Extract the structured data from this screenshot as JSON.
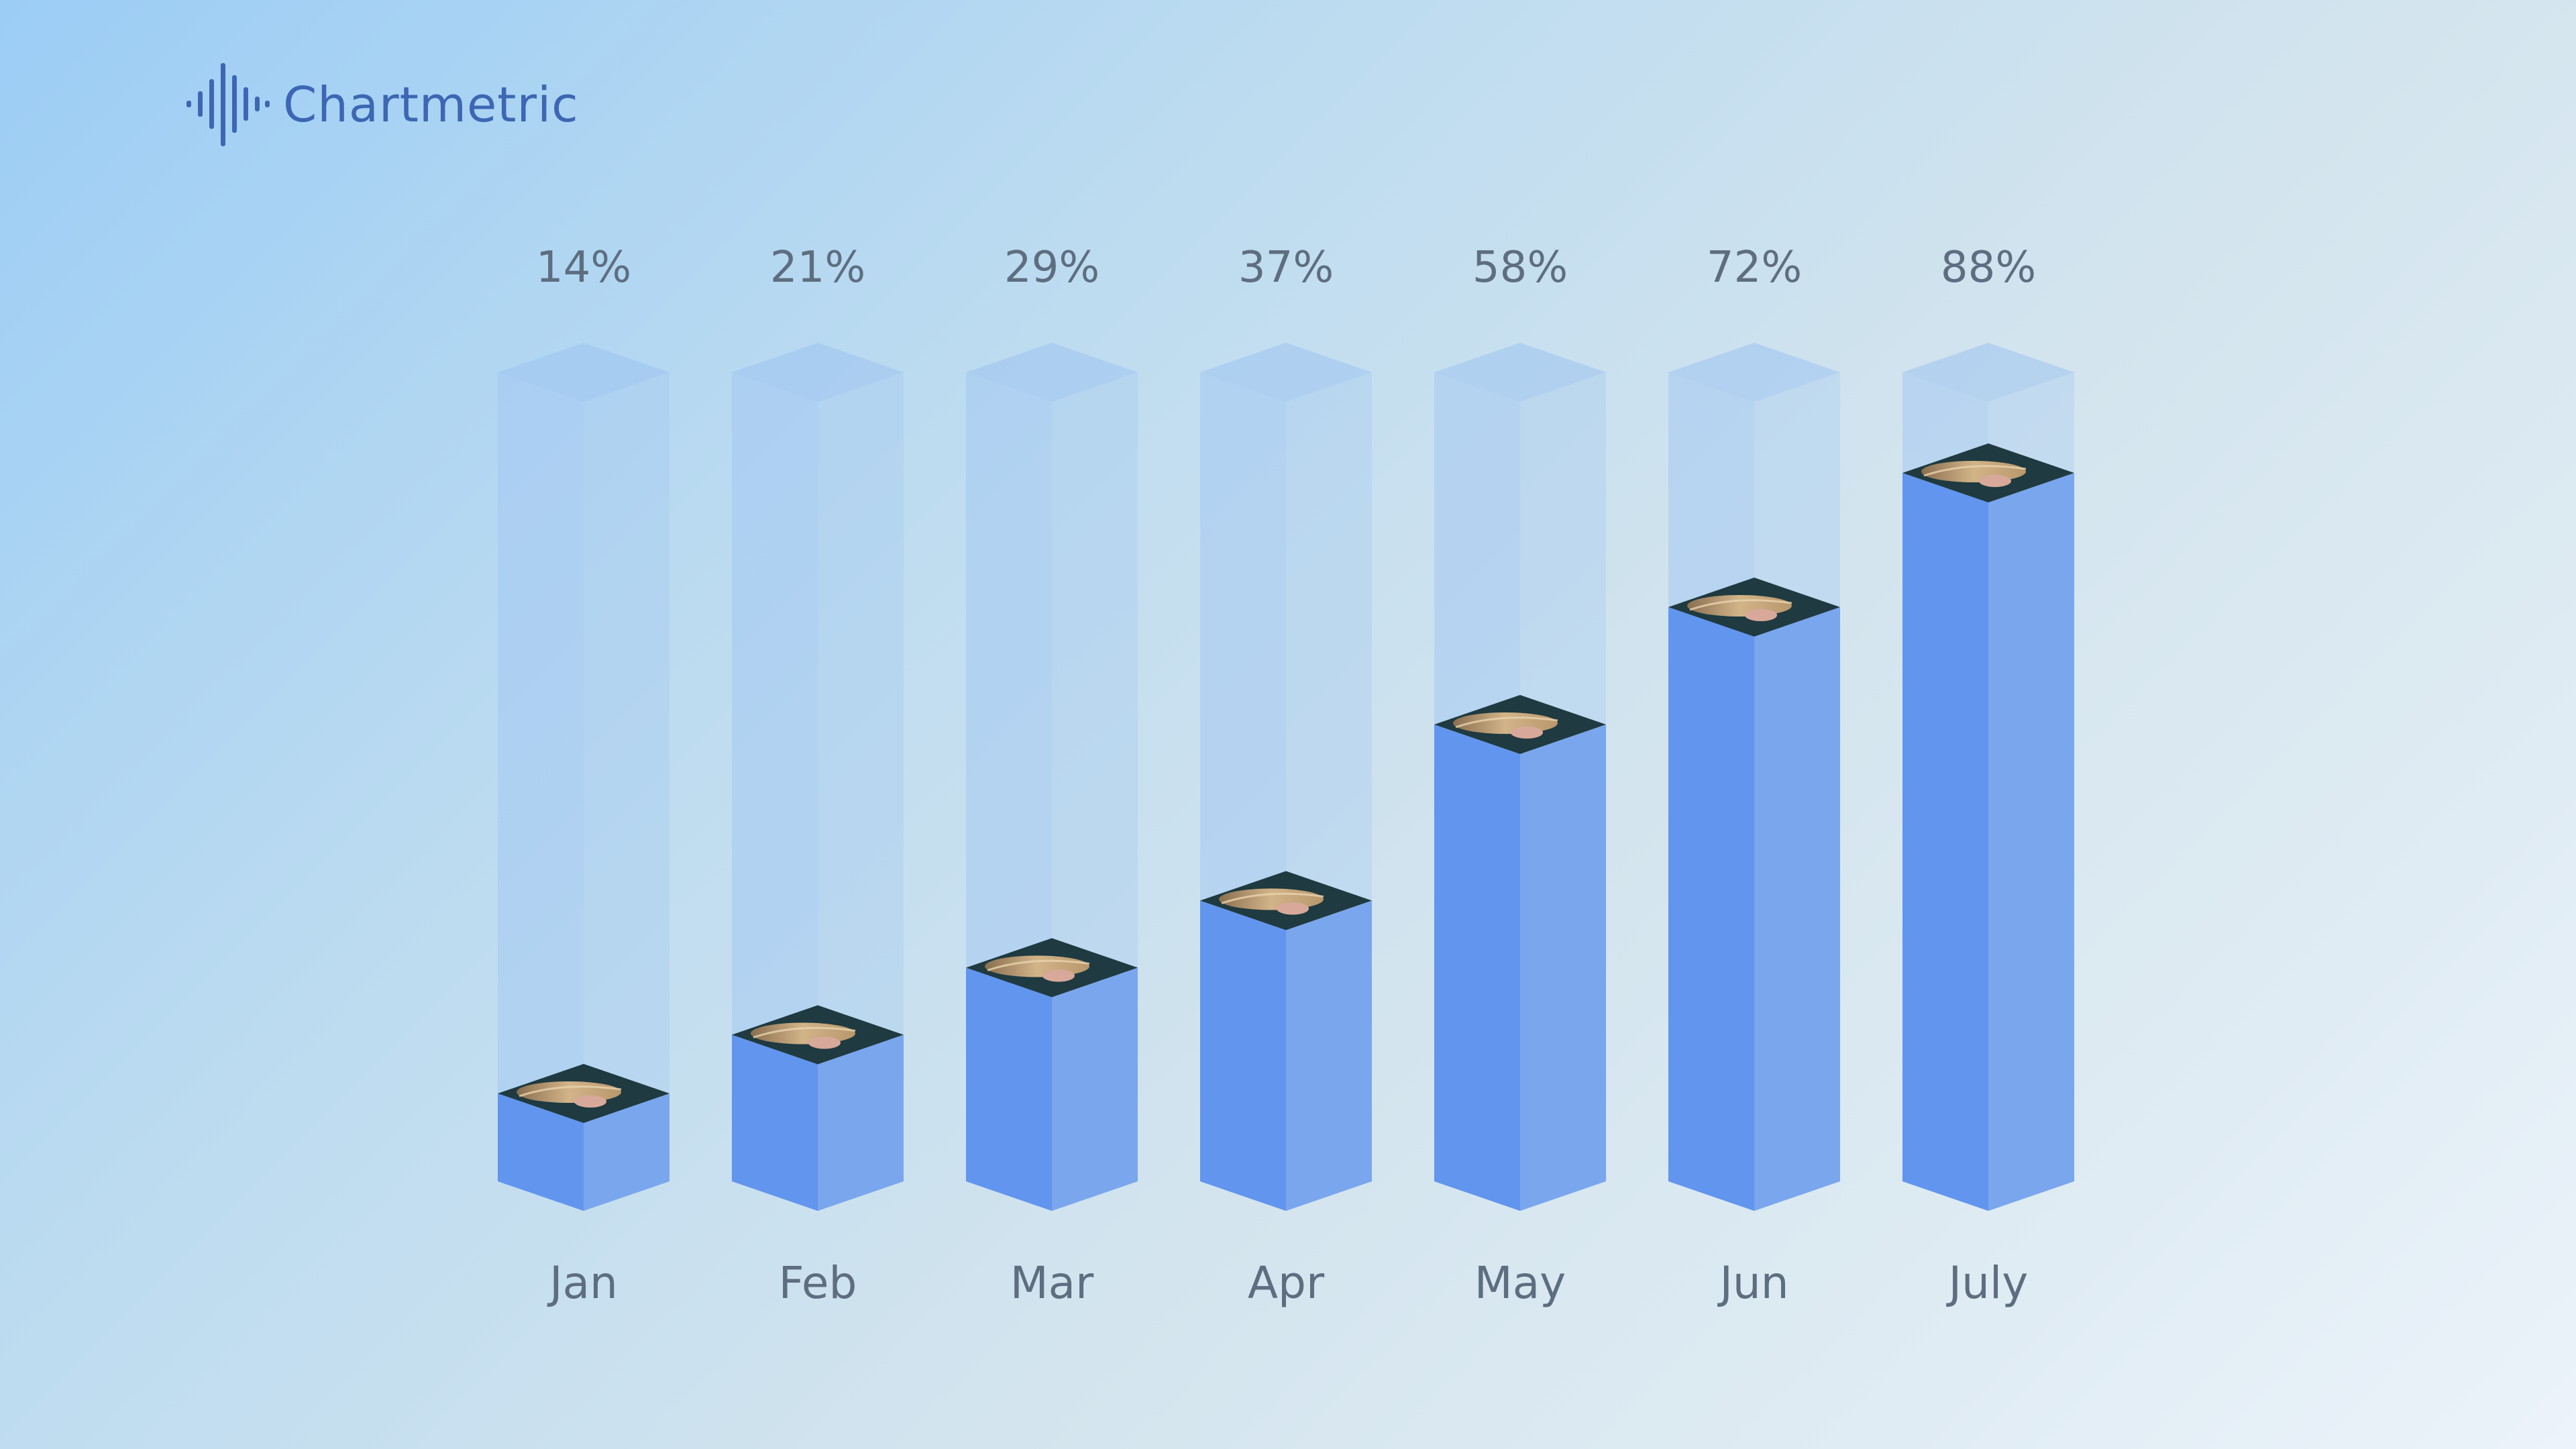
{
  "brand": {
    "name": "Chartmetric",
    "logo_icon": "waveform-logo-icon",
    "color": "#3d67b3"
  },
  "colors": {
    "bar_front": "#6295ed",
    "bar_side": "#7aa6ee",
    "bar_ghost": "#a4c8f2",
    "label": "#5e6e80"
  },
  "bar_top_image": "artist-photo",
  "chart_data": {
    "type": "bar",
    "style": "3d-isometric",
    "title": "",
    "xlabel": "",
    "ylabel": "",
    "ylim": [
      0,
      100
    ],
    "unit": "%",
    "grid": false,
    "legend": false,
    "categories": [
      "Jan",
      "Feb",
      "Mar",
      "Apr",
      "May",
      "Jun",
      "July"
    ],
    "values": [
      14,
      21,
      29,
      37,
      58,
      72,
      88
    ],
    "value_labels": [
      "14%",
      "21%",
      "29%",
      "37%",
      "58%",
      "72%",
      "88%"
    ]
  }
}
